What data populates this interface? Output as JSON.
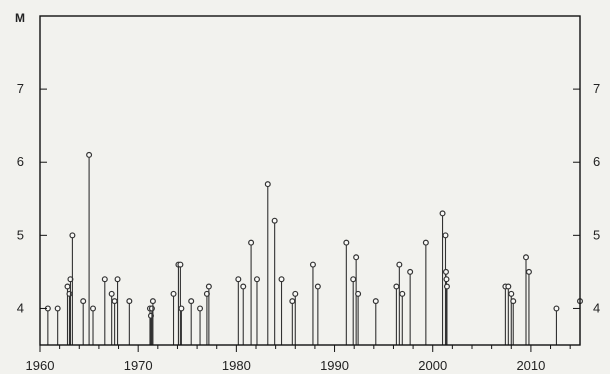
{
  "chart_data": {
    "type": "scatter",
    "style": "lollipop",
    "title": "",
    "xlabel": "",
    "ylabel": "M",
    "xlim": [
      1960,
      2015
    ],
    "ylim": [
      3.5,
      8.0
    ],
    "baseline": 3.5,
    "x_ticks": [
      1960,
      1970,
      1980,
      1990,
      2000,
      2010
    ],
    "y_ticks": [
      4,
      5,
      6,
      7
    ],
    "grid": false,
    "legend": "none",
    "colors": {
      "mark": "#333333",
      "frame": "#111111",
      "background": "#f2f2ee"
    },
    "series": [
      {
        "x": [
          1960.8,
          1961.8,
          1962.8,
          1963.0,
          1963.1,
          1963.3,
          1964.4,
          1965.0,
          1965.4,
          1966.6,
          1967.3,
          1967.6,
          1967.9,
          1969.1,
          1971.2,
          1971.3,
          1971.4,
          1971.5,
          1973.6,
          1974.1,
          1974.3,
          1974.4,
          1975.4,
          1976.3,
          1977.0,
          1977.2,
          1980.2,
          1980.7,
          1981.5,
          1982.1,
          1983.2,
          1983.9,
          1984.6,
          1985.7,
          1986.0,
          1987.8,
          1988.3,
          1991.2,
          1991.9,
          1992.2,
          1992.4,
          1994.2,
          1996.3,
          1996.6,
          1996.9,
          1997.7,
          1999.3,
          2001.0,
          2001.3,
          2001.35,
          2001.4,
          2001.45,
          2007.4,
          2007.7,
          2008.0,
          2008.2,
          2009.5,
          2009.8,
          2012.6,
          2015.0
        ],
        "values": [
          4.0,
          4.0,
          4.3,
          4.2,
          4.4,
          5.0,
          4.1,
          6.1,
          4.0,
          4.4,
          4.2,
          4.1,
          4.4,
          4.1,
          4.0,
          3.9,
          4.0,
          4.1,
          4.2,
          4.6,
          4.6,
          4.0,
          4.1,
          4.0,
          4.2,
          4.3,
          4.4,
          4.3,
          4.9,
          4.4,
          5.7,
          5.2,
          4.4,
          4.1,
          4.2,
          4.6,
          4.3,
          4.9,
          4.4,
          4.7,
          4.2,
          4.1,
          4.3,
          4.6,
          4.2,
          4.5,
          4.9,
          5.3,
          5.0,
          4.5,
          4.4,
          4.3,
          4.3,
          4.3,
          4.2,
          4.1,
          4.7,
          4.5,
          4.0,
          4.1
        ]
      }
    ]
  }
}
